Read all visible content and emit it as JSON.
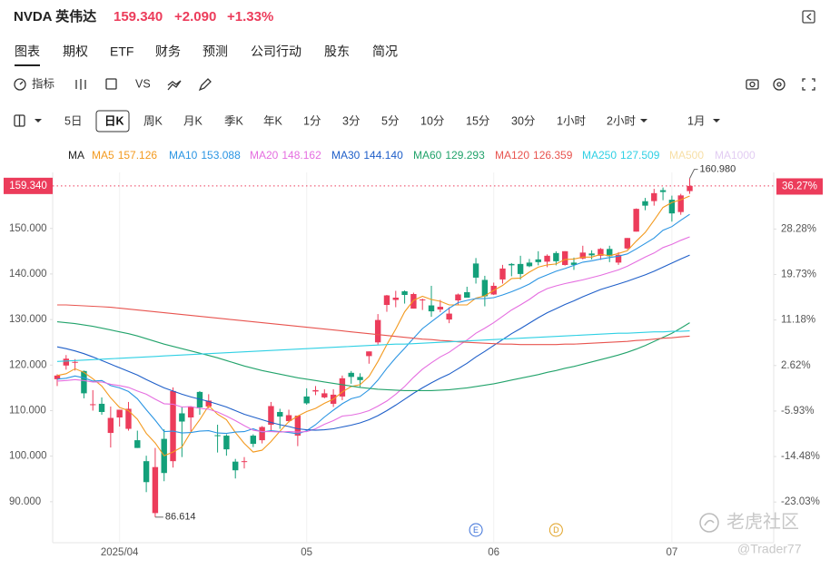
{
  "header": {
    "symbol": "NVDA 英伟达",
    "change": "+2.090",
    "change_pct": "+1.33%"
  },
  "tabs": [
    "图表",
    "期权",
    "ETF",
    "财务",
    "预测",
    "公司行动",
    "股东",
    "简况"
  ],
  "tools": [
    "指标",
    "VS"
  ],
  "periods": [
    "5日",
    "日K",
    "周K",
    "月K",
    "季K",
    "年K",
    "1分",
    "3分",
    "5分",
    "10分",
    "15分",
    "30分",
    "1小时",
    "2小时",
    "1月"
  ],
  "active_period": 1,
  "watermark": [
    "老虎社区",
    "@Trader77"
  ],
  "chart_data": {
    "type": "candlestick",
    "categories": [
      null,
      null,
      null,
      null,
      null,
      null,
      null,
      "2025/04",
      null,
      null,
      null,
      null,
      null,
      null,
      null,
      null,
      null,
      null,
      null,
      null,
      null,
      null,
      null,
      null,
      null,
      null,
      null,
      null,
      "05",
      null,
      null,
      null,
      null,
      null,
      null,
      null,
      null,
      null,
      null,
      null,
      null,
      null,
      null,
      null,
      null,
      null,
      null,
      null,
      null,
      "06",
      null,
      null,
      null,
      null,
      null,
      null,
      null,
      null,
      null,
      null,
      null,
      null,
      null,
      null,
      null,
      null,
      null,
      null,
      null,
      "07",
      null,
      null
    ],
    "open": [
      116.9,
      119.9,
      120.5,
      118.7,
      111.3,
      111.5,
      105.1,
      108.5,
      106.0,
      103.5,
      98.9,
      87.5,
      103.8,
      98.9,
      109.4,
      108.5,
      114.1,
      110.9,
      104.6,
      104.5,
      98.8,
      98.8,
      104.5,
      103.5,
      106.9,
      109.7,
      107.7,
      104.5,
      113.1,
      114.2,
      112.9,
      111.5,
      113.1,
      118.3,
      117.4,
      121.97,
      124.98,
      133.2,
      134.3,
      136.2,
      132.4,
      134.3,
      133.1,
      132.2,
      130.0,
      134.2,
      136.0,
      142.3,
      138.7,
      135.5,
      138.8,
      142.2,
      142.2,
      142.5,
      143.2,
      142.7,
      144.6,
      141.97,
      142.5,
      143.4,
      144.5,
      144.0,
      145.5,
      142.5,
      145.6,
      149.3,
      155.98,
      156.0,
      158.4,
      156.3,
      153.6,
      158.2
    ],
    "high": [
      117.99,
      122.2,
      121.3,
      118.8,
      114.5,
      112.9,
      110.9,
      110.2,
      111.9,
      105.6,
      100.1,
      101.8,
      105.9,
      115.1,
      110.9,
      111.0,
      114.3,
      113.6,
      106.9,
      104.8,
      99.4,
      99.8,
      104.8,
      106.6,
      111.9,
      110.4,
      110.2,
      108.9,
      114.9,
      115.4,
      114.7,
      114.7,
      117.7,
      118.7,
      118.2,
      123.0,
      131.2,
      135.4,
      136.3,
      136.4,
      135.9,
      134.6,
      137.4,
      134.3,
      132.7,
      135.7,
      137.2,
      143.5,
      139.6,
      138.1,
      142.0,
      142.4,
      144.0,
      143.3,
      145.0,
      144.3,
      144.99,
      145.0,
      143.6,
      146.2,
      145.2,
      145.7,
      146.2,
      144.8,
      147.9,
      154.4,
      156.7,
      158.7,
      158.99,
      157.2,
      157.6,
      160.98
    ],
    "low": [
      115.4,
      119.0,
      118.8,
      112.7,
      110.0,
      109.1,
      101.9,
      106.5,
      105.6,
      101.8,
      92.1,
      86.614,
      94.5,
      97.5,
      99.8,
      105.4,
      109.1,
      110.5,
      100.8,
      100.1,
      95.1,
      97.3,
      102.0,
      102.8,
      105.7,
      106.0,
      107.4,
      102.2,
      111.3,
      113.4,
      112.7,
      110.8,
      112.3,
      115.9,
      115.2,
      120.3,
      124.5,
      131.7,
      132.7,
      133.5,
      132.4,
      132.1,
      130.6,
      131.6,
      129.2,
      133.3,
      134.8,
      137.9,
      132.9,
      135.4,
      137.9,
      139.5,
      138.8,
      141.5,
      141.9,
      141.5,
      141.9,
      141.85,
      140.9,
      143.2,
      143.2,
      143.1,
      142.6,
      142.0,
      145.4,
      149.3,
      154.0,
      155.0,
      156.2,
      151.5,
      153.0,
      157.6
    ],
    "close": [
      117.7,
      121.4,
      120.7,
      113.8,
      111.4,
      109.7,
      108.4,
      110.2,
      110.4,
      101.8,
      94.3,
      97.6,
      96.3,
      114.3,
      107.6,
      110.9,
      110.7,
      112.2,
      104.5,
      101.5,
      96.9,
      98.9,
      102.7,
      106.4,
      111.0,
      108.7,
      109.0,
      108.9,
      111.6,
      114.5,
      113.8,
      113.5,
      117.1,
      117.4,
      116.7,
      123.0,
      129.9,
      135.3,
      134.8,
      135.4,
      135.6,
      134.4,
      131.8,
      132.8,
      131.3,
      135.5,
      134.8,
      139.2,
      135.1,
      137.4,
      141.2,
      141.9,
      140.0,
      141.7,
      142.6,
      144.0,
      142.8,
      145.0,
      142.0,
      144.7,
      144.1,
      145.5,
      143.9,
      144.2,
      147.9,
      154.3,
      155.0,
      157.75,
      158.0,
      153.3,
      157.25,
      159.34
    ],
    "high_labels": [
      null,
      null,
      null,
      null,
      null,
      null,
      null,
      null,
      null,
      null,
      null,
      null,
      null,
      null,
      null,
      null,
      null,
      null,
      null,
      null,
      null,
      null,
      null,
      null,
      null,
      null,
      null,
      null,
      null,
      null,
      null,
      null,
      null,
      null,
      null,
      null,
      null,
      null,
      null,
      null,
      null,
      null,
      null,
      null,
      null,
      null,
      null,
      null,
      null,
      null,
      null,
      null,
      null,
      null,
      null,
      null,
      null,
      null,
      null,
      null,
      null,
      null,
      null,
      null,
      null,
      null,
      null,
      null,
      null,
      null,
      null,
      "160.980"
    ],
    "low_labels": [
      null,
      null,
      null,
      null,
      null,
      null,
      null,
      null,
      null,
      null,
      null,
      "86.614",
      null,
      null,
      null,
      null,
      null,
      null,
      null,
      null,
      null,
      null,
      null,
      null,
      null,
      null,
      null,
      null,
      null,
      null,
      null,
      null,
      null,
      null,
      null,
      null,
      null,
      null,
      null,
      null,
      null,
      null,
      null,
      null,
      null,
      null,
      null,
      null,
      null,
      null,
      null,
      null,
      null,
      null,
      null,
      null,
      null,
      null,
      null,
      null,
      null,
      null,
      null,
      null,
      null,
      null,
      null,
      null,
      null,
      null,
      null,
      null
    ],
    "events": [
      null,
      null,
      null,
      null,
      null,
      null,
      null,
      null,
      null,
      null,
      null,
      null,
      null,
      null,
      null,
      null,
      null,
      null,
      null,
      null,
      null,
      null,
      null,
      null,
      null,
      null,
      null,
      null,
      null,
      null,
      null,
      null,
      null,
      null,
      null,
      null,
      null,
      null,
      null,
      null,
      null,
      null,
      null,
      null,
      null,
      null,
      null,
      {
        "label": "E",
        "color": "#3a6fd8"
      },
      null,
      null,
      null,
      null,
      null,
      null,
      null,
      null,
      {
        "label": "D",
        "color": "#e0a020"
      },
      null,
      null,
      null,
      null,
      null,
      null,
      null,
      null,
      null,
      null,
      null,
      null,
      null,
      null,
      null
    ],
    "up_color": "#ec3c5b",
    "down_color": "#13a07a",
    "legend_title": "MA",
    "legend_inactive": [
      {
        "name": "MA500",
        "color": "#f7dfa6"
      },
      {
        "name": "MA1000",
        "color": "#e2cdf2"
      }
    ],
    "series": [
      {
        "name": "MA5",
        "color": "#f39a1f",
        "values": [
          117.7,
          118.1,
          119.2,
          118.4,
          117.0,
          115.4,
          112.8,
          110.7,
          110.0,
          108.1,
          105.0,
          102.9,
          100.1,
          100.9,
          102.0,
          105.3,
          108.0,
          111.1,
          109.2,
          108.0,
          105.2,
          102.8,
          100.9,
          101.3,
          103.2,
          105.5,
          107.6,
          108.8,
          109.8,
          110.5,
          111.6,
          112.5,
          114.1,
          115.3,
          115.7,
          117.5,
          120.8,
          124.5,
          127.9,
          131.7,
          134.2,
          135.1,
          134.4,
          134.0,
          133.2,
          133.2,
          133.2,
          134.7,
          135.2,
          136.4,
          137.5,
          139.0,
          139.1,
          140.4,
          141.5,
          142.0,
          142.2,
          143.2,
          143.3,
          143.7,
          143.7,
          144.3,
          144.0,
          144.5,
          145.1,
          147.2,
          149.1,
          151.8,
          154.6,
          155.7,
          156.3,
          157.126
        ]
      },
      {
        "name": "MA10",
        "color": "#2b95e3",
        "values": [
          116.9,
          117.1,
          117.6,
          117.2,
          116.5,
          116.6,
          115.5,
          115.0,
          114.2,
          112.6,
          110.2,
          107.9,
          105.4,
          105.5,
          105.1,
          105.2,
          105.5,
          105.6,
          105.1,
          105.0,
          105.3,
          105.4,
          106.0,
          105.3,
          105.6,
          105.4,
          105.2,
          104.9,
          105.6,
          106.9,
          108.6,
          110.1,
          111.5,
          112.6,
          113.1,
          114.6,
          116.7,
          119.3,
          121.6,
          123.7,
          125.9,
          128.0,
          129.5,
          131.0,
          132.5,
          133.7,
          134.2,
          134.6,
          134.6,
          134.8,
          135.4,
          136.1,
          136.9,
          137.8,
          139.0,
          139.8,
          140.6,
          141.2,
          141.9,
          142.6,
          142.9,
          143.3,
          143.6,
          143.9,
          144.4,
          145.5,
          146.7,
          147.9,
          149.6,
          150.4,
          151.8,
          153.088
        ]
      },
      {
        "name": "MA20",
        "color": "#e56ee0",
        "values": [
          116.5,
          116.6,
          116.8,
          116.6,
          116.3,
          116.3,
          115.8,
          115.5,
          115.1,
          114.3,
          113.6,
          112.5,
          111.5,
          111.4,
          110.8,
          110.9,
          110.5,
          110.3,
          109.7,
          108.8,
          107.8,
          106.7,
          105.7,
          105.4,
          105.4,
          105.3,
          105.4,
          105.3,
          105.4,
          106.0,
          107.0,
          107.8,
          108.8,
          109.0,
          109.4,
          110.0,
          111.0,
          112.1,
          113.6,
          115.3,
          117.3,
          119.1,
          120.5,
          121.8,
          122.8,
          124.2,
          125.5,
          127.0,
          128.1,
          129.3,
          130.7,
          132.1,
          133.2,
          134.4,
          135.8,
          136.8,
          137.4,
          137.9,
          138.3,
          138.7,
          139.2,
          139.7,
          140.3,
          140.9,
          141.7,
          142.7,
          143.7,
          144.6,
          145.8,
          146.5,
          147.4,
          148.162
        ]
      },
      {
        "name": "MA30",
        "color": "#1f5fc9",
        "values": [
          124.0,
          123.6,
          123.1,
          122.5,
          121.8,
          121.0,
          120.2,
          119.4,
          118.6,
          117.8,
          116.8,
          115.9,
          115.0,
          114.3,
          113.6,
          113.0,
          112.5,
          112.0,
          111.4,
          110.8,
          110.0,
          109.2,
          108.6,
          108.0,
          107.4,
          106.9,
          106.5,
          106.0,
          105.8,
          105.7,
          105.8,
          106.0,
          106.4,
          106.8,
          107.3,
          108.0,
          108.9,
          110.0,
          111.2,
          112.5,
          113.8,
          115.0,
          116.1,
          117.1,
          118.0,
          119.2,
          120.4,
          121.8,
          123.0,
          124.3,
          125.6,
          126.9,
          128.0,
          129.2,
          130.4,
          131.5,
          132.4,
          133.3,
          134.1,
          135.0,
          135.8,
          136.6,
          137.2,
          137.8,
          138.4,
          139.1,
          139.8,
          140.6,
          141.5,
          142.4,
          143.3,
          144.14
        ],
        "value_labels": [
          null,
          null,
          null,
          null,
          null,
          null,
          null,
          null,
          null,
          null,
          null,
          null,
          null,
          null,
          null,
          null,
          null,
          null,
          null,
          null,
          null,
          null,
          null,
          null,
          null,
          null,
          null,
          null,
          null,
          null,
          null,
          null,
          null,
          null,
          null,
          null,
          null,
          null,
          null,
          null,
          null,
          null,
          null,
          null,
          null,
          null,
          null,
          null,
          null,
          null,
          null,
          null,
          null,
          null,
          null,
          null,
          null,
          null,
          null,
          null,
          null,
          null,
          null,
          null,
          null,
          null,
          null,
          null,
          null,
          null,
          null,
          "144.140"
        ]
      },
      {
        "name": "MA60",
        "color": "#22a36b",
        "values": [
          129.5,
          129.3,
          129.1,
          128.8,
          128.5,
          128.1,
          127.7,
          127.3,
          126.9,
          126.4,
          125.8,
          125.2,
          124.6,
          124.1,
          123.6,
          123.1,
          122.6,
          122.1,
          121.6,
          121.0,
          120.4,
          119.8,
          119.3,
          118.8,
          118.4,
          118.0,
          117.6,
          117.2,
          116.9,
          116.6,
          116.3,
          116.0,
          115.7,
          115.4,
          115.1,
          114.9,
          114.7,
          114.6,
          114.5,
          114.4,
          114.4,
          114.4,
          114.4,
          114.5,
          114.6,
          114.8,
          115.0,
          115.3,
          115.6,
          115.9,
          116.3,
          116.7,
          117.1,
          117.5,
          117.9,
          118.4,
          118.8,
          119.3,
          119.7,
          120.2,
          120.7,
          121.2,
          121.7,
          122.2,
          122.8,
          123.5,
          124.3,
          125.2,
          126.1,
          127.0,
          128.1,
          129.293
        ]
      },
      {
        "name": "MA120",
        "color": "#e8544f",
        "values": [
          133.2,
          133.2,
          133.1,
          133.0,
          132.9,
          132.8,
          132.7,
          132.5,
          132.3,
          132.1,
          131.9,
          131.7,
          131.5,
          131.3,
          131.1,
          130.9,
          130.7,
          130.5,
          130.3,
          130.1,
          129.9,
          129.7,
          129.5,
          129.3,
          129.1,
          128.9,
          128.7,
          128.5,
          128.3,
          128.1,
          127.9,
          127.7,
          127.5,
          127.3,
          127.1,
          126.9,
          126.7,
          126.5,
          126.3,
          126.1,
          125.9,
          125.7,
          125.6,
          125.4,
          125.3,
          125.1,
          125.0,
          124.9,
          124.8,
          124.7,
          124.6,
          124.6,
          124.5,
          124.5,
          124.5,
          124.5,
          124.5,
          124.6,
          124.6,
          124.7,
          124.8,
          124.9,
          125.0,
          125.1,
          125.2,
          125.4,
          125.5,
          125.7,
          125.9,
          126.0,
          126.2,
          126.359
        ]
      },
      {
        "name": "MA250",
        "color": "#2fd0e4",
        "values": [
          120.8,
          120.9,
          121.0,
          121.1,
          121.2,
          121.3,
          121.4,
          121.5,
          121.6,
          121.7,
          121.8,
          121.9,
          122.0,
          122.1,
          122.2,
          122.3,
          122.4,
          122.5,
          122.6,
          122.7,
          122.8,
          122.9,
          123.0,
          123.1,
          123.2,
          123.3,
          123.4,
          123.5,
          123.6,
          123.7,
          123.8,
          123.9,
          124.0,
          124.1,
          124.2,
          124.3,
          124.4,
          124.5,
          124.6,
          124.6,
          124.7,
          124.8,
          124.9,
          125.0,
          125.1,
          125.2,
          125.3,
          125.4,
          125.5,
          125.6,
          125.7,
          125.8,
          125.9,
          126.0,
          126.1,
          126.2,
          126.3,
          126.4,
          126.5,
          126.6,
          126.7,
          126.8,
          126.9,
          127.0,
          127.0,
          127.1,
          127.2,
          127.3,
          127.3,
          127.4,
          127.4,
          127.509
        ]
      }
    ],
    "current_price": {
      "value": 159.34,
      "label": "159.340"
    },
    "current_pct": {
      "value": 36.27,
      "label": "36.27%"
    },
    "ylim": [
      81.6,
      162.3
    ],
    "yticks": [
      {
        "value": 90,
        "label": "90.000"
      },
      {
        "value": 100,
        "label": "100.000"
      },
      {
        "value": 110,
        "label": "110.000"
      },
      {
        "value": 120,
        "label": "120.000"
      },
      {
        "value": 130,
        "label": "130.000"
      },
      {
        "value": 140,
        "label": "140.000"
      },
      {
        "value": 150,
        "label": "150.000"
      }
    ],
    "y2lim": [
      -30.16,
      38.91
    ],
    "y2ticks": [
      {
        "value": 28.28,
        "label": "28.28%"
      },
      {
        "value": 19.73,
        "label": "19.73%"
      },
      {
        "value": 11.18,
        "label": "11.18%"
      },
      {
        "value": 2.62,
        "label": "2.62%"
      },
      {
        "value": -5.93,
        "label": "-5.93%"
      },
      {
        "value": -14.48,
        "label": "-14.48%"
      },
      {
        "value": -23.03,
        "label": "-23.03%"
      }
    ]
  }
}
